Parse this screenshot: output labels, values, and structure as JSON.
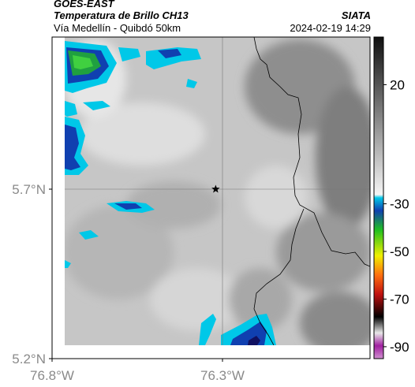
{
  "header": {
    "source": "GOES-EAST",
    "product": "Temperatura de Brillo CH13",
    "region": "Vía Medellín - Quibdó 50km",
    "agency": "SIATA",
    "datetime": "2024-02-19 14:29"
  },
  "axes": {
    "y_ticks": [
      {
        "label": "5.7°N",
        "value": 5.7
      },
      {
        "label": "5.2°N",
        "value": 5.2
      }
    ],
    "x_ticks": [
      {
        "label": "76.8°W",
        "value": -76.8
      },
      {
        "label": "76.3°W",
        "value": -76.3
      }
    ]
  },
  "colorbar": {
    "ticks": [
      {
        "label": "20",
        "value": 20
      },
      {
        "label": "-30",
        "value": -30
      },
      {
        "label": "-50",
        "value": -50
      },
      {
        "label": "-70",
        "value": -70
      },
      {
        "label": "-90",
        "value": -90
      }
    ],
    "range": [
      -95,
      40
    ],
    "colors": {
      "warm_dark": "#2b2b2b",
      "warm_light": "#f0f0f0",
      "cyan": "#00c8e8",
      "blue": "#1040b0",
      "green": "#20c020",
      "yellow": "#f0f000",
      "red": "#e01010",
      "black": "#000000",
      "magenta": "#c040c0"
    }
  },
  "map": {
    "marker_name": "star-marker",
    "marker_location": {
      "lon": -76.32,
      "lat": 5.7
    }
  }
}
